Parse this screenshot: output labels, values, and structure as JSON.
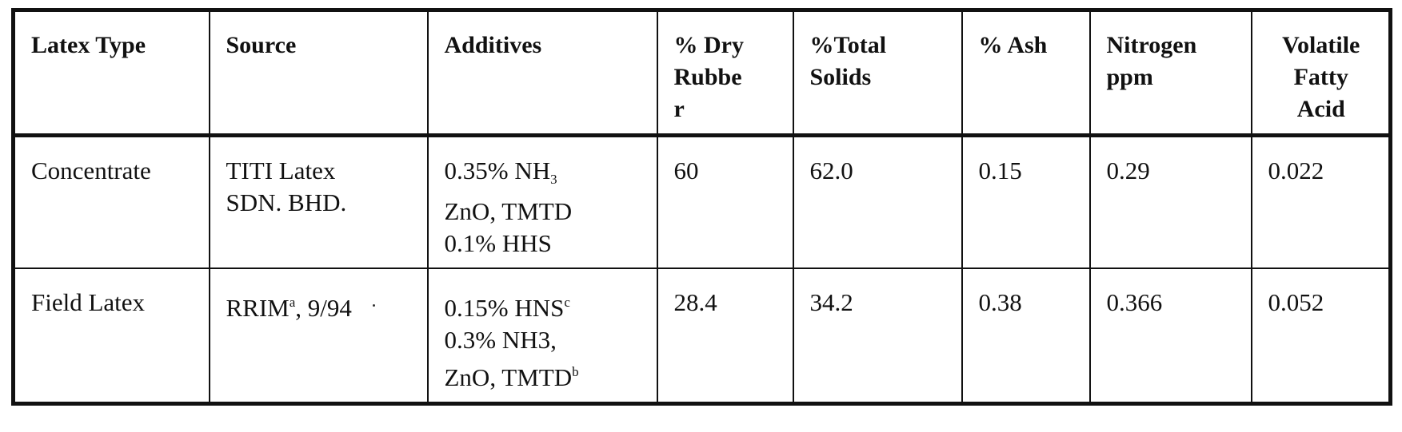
{
  "table": {
    "headers": [
      [
        "Latex Type"
      ],
      [
        "Source"
      ],
      [
        "Additives"
      ],
      [
        "% Dry",
        "Rubbe",
        "r"
      ],
      [
        "%Total",
        "Solids"
      ],
      [
        "% Ash"
      ],
      [
        "Nitrogen",
        "ppm"
      ],
      [
        "Volatile",
        "Fatty",
        "Acid"
      ]
    ],
    "rows": [
      {
        "latex_type": "Concentrate",
        "source_lines": [
          "TITI Latex",
          "SDN. BHD."
        ],
        "additives": {
          "line1_prefix": "0.35% NH",
          "line1_sub": "3",
          "line2": "ZnO, TMTD",
          "line3": "0.1% HHS"
        },
        "dry_rubber": "60",
        "total_solids": "62.0",
        "ash": "0.15",
        "nitrogen": "0.29",
        "vfa": "0.022"
      },
      {
        "latex_type": "Field Latex",
        "source": {
          "prefix": "RRIM",
          "sup": "a",
          "suffix": ", 9/94"
        },
        "additives": {
          "line1_prefix": "0.15% HNS",
          "line1_sup": "c",
          "line2": "0.3% NH3,",
          "line3_prefix": "ZnO, TMTD",
          "line3_sup": "b"
        },
        "dry_rubber": "28.4",
        "total_solids": "34.2",
        "ash": "0.38",
        "nitrogen": "0.366",
        "vfa": "0.052"
      }
    ]
  }
}
